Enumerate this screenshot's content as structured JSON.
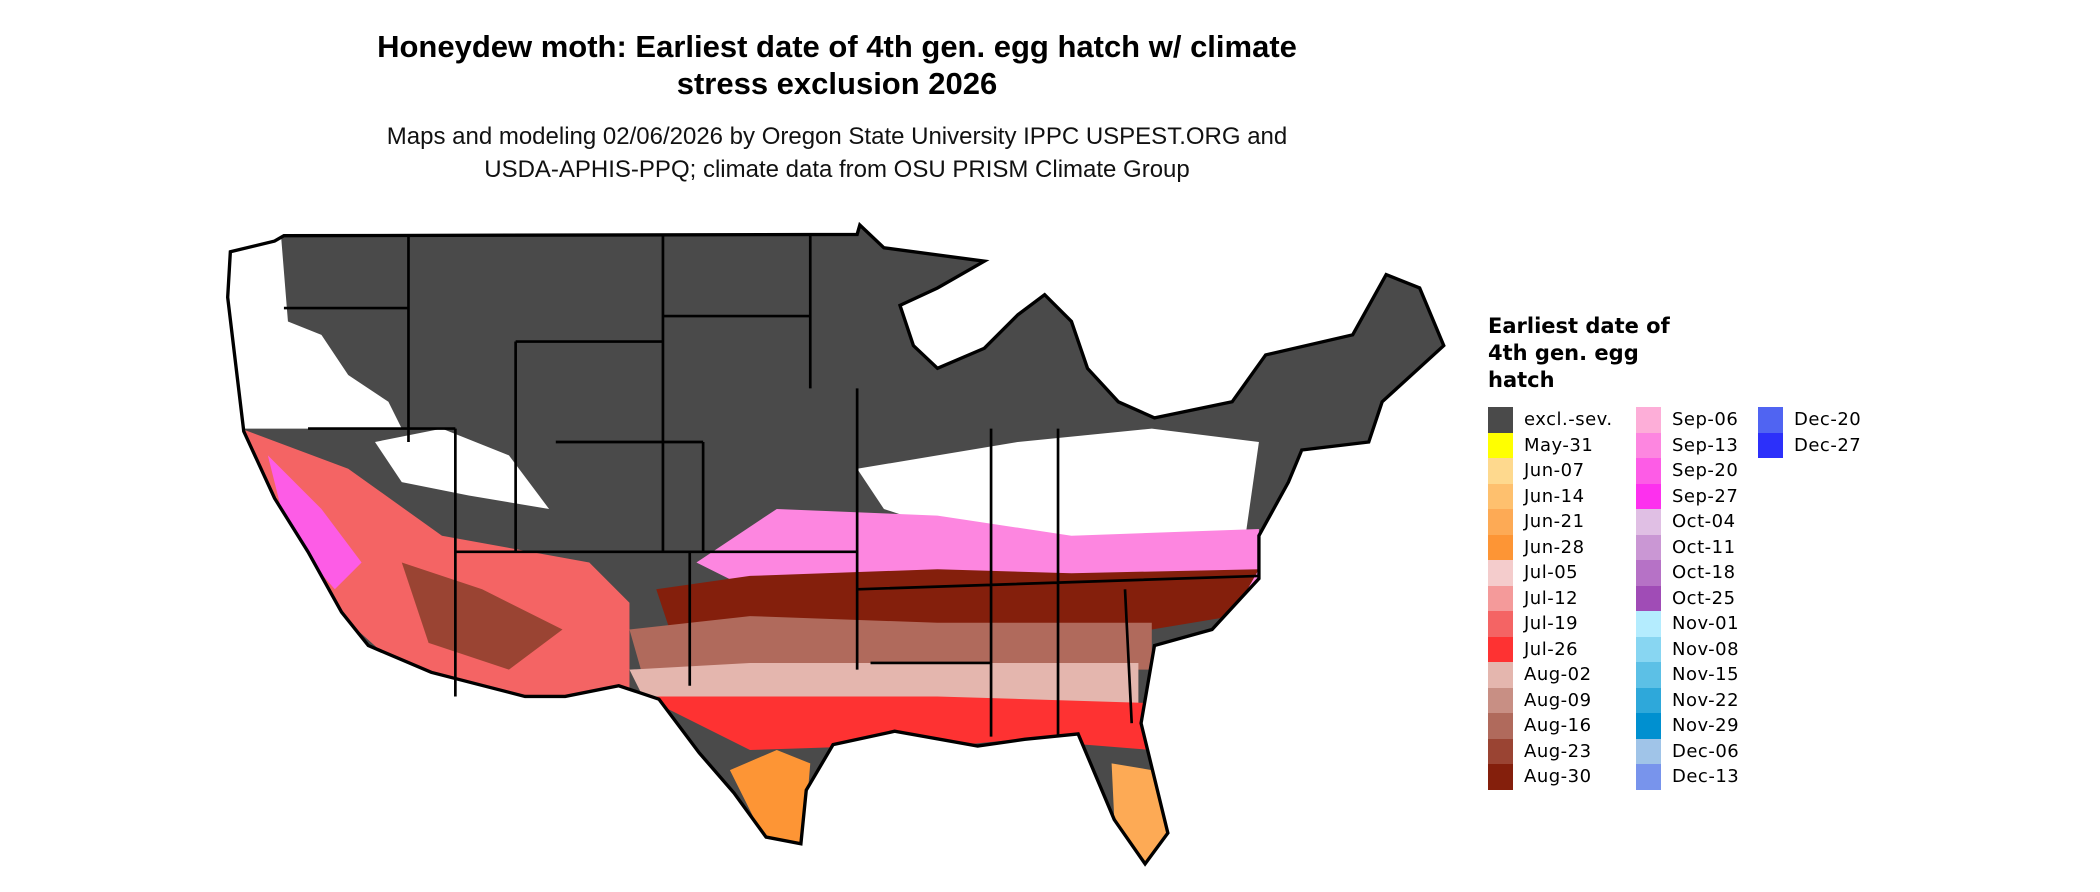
{
  "title": [
    "Honeydew moth: Earliest date of 4th gen. egg hatch w/ climate",
    "stress exclusion 2026"
  ],
  "subtitle": [
    "Maps and modeling 02/06/2026 by Oregon State University IPPC USPEST.ORG and",
    "USDA-APHIS-PPQ; climate data from OSU PRISM Climate Group"
  ],
  "legend": {
    "title": "Earliest date of 4th gen. egg hatch",
    "items": [
      {
        "label": "excl.-sev.",
        "color": "#4a4a4a"
      },
      {
        "label": "May-31",
        "color": "#ffff00"
      },
      {
        "label": "Jun-07",
        "color": "#fed98e"
      },
      {
        "label": "Jun-14",
        "color": "#fec06e"
      },
      {
        "label": "Jun-21",
        "color": "#fdaa55"
      },
      {
        "label": "Jun-28",
        "color": "#fd9535"
      },
      {
        "label": "Jul-05",
        "color": "#f4cccc"
      },
      {
        "label": "Jul-12",
        "color": "#f49a9a"
      },
      {
        "label": "Jul-19",
        "color": "#f46464"
      },
      {
        "label": "Jul-26",
        "color": "#fe3232"
      },
      {
        "label": "Aug-02",
        "color": "#e4b6ae"
      },
      {
        "label": "Aug-09",
        "color": "#c88f84"
      },
      {
        "label": "Aug-16",
        "color": "#b06a5c"
      },
      {
        "label": "Aug-23",
        "color": "#9a4433"
      },
      {
        "label": "Aug-30",
        "color": "#841f0c"
      },
      {
        "label": "Sep-06",
        "color": "#fdaed8"
      },
      {
        "label": "Sep-13",
        "color": "#fd86e0"
      },
      {
        "label": "Sep-20",
        "color": "#fd5ce6"
      },
      {
        "label": "Sep-27",
        "color": "#fd30ee"
      },
      {
        "label": "Oct-04",
        "color": "#e0bfe4"
      },
      {
        "label": "Oct-11",
        "color": "#ca97d4"
      },
      {
        "label": "Oct-18",
        "color": "#b672c6"
      },
      {
        "label": "Oct-25",
        "color": "#a04cb6"
      },
      {
        "label": "Nov-01",
        "color": "#b4ecfe"
      },
      {
        "label": "Nov-08",
        "color": "#88d6f2"
      },
      {
        "label": "Nov-15",
        "color": "#5cc0e6"
      },
      {
        "label": "Nov-22",
        "color": "#2ea8da"
      },
      {
        "label": "Nov-29",
        "color": "#0090d0"
      },
      {
        "label": "Dec-06",
        "color": "#a0c4e8"
      },
      {
        "label": "Dec-13",
        "color": "#7894ec"
      },
      {
        "label": "Dec-20",
        "color": "#5064f2"
      },
      {
        "label": "Dec-27",
        "color": "#2c30fa"
      }
    ]
  }
}
